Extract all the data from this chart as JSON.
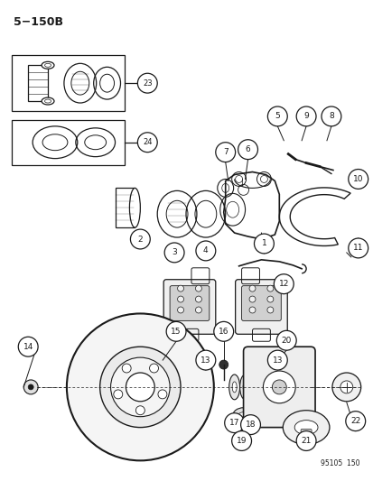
{
  "title": "5−150B",
  "footer": "95105  150",
  "bg_color": "#ffffff",
  "line_color": "#1a1a1a",
  "fig_w": 4.14,
  "fig_h": 5.33,
  "dpi": 100
}
